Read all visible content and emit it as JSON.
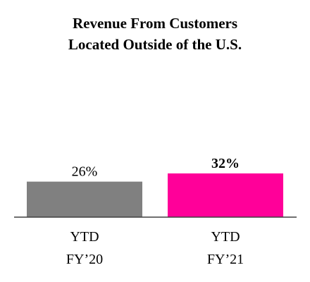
{
  "chart_data": {
    "type": "bar",
    "title_lines": [
      "Revenue From Customers",
      "Located Outside of the U.S."
    ],
    "categories": [
      [
        "YTD",
        "FY’20"
      ],
      [
        "YTD",
        "FY’21"
      ]
    ],
    "values": [
      26,
      32
    ],
    "data_labels": [
      "26%",
      "32%"
    ],
    "bar_colors": [
      "#808080",
      "#ff0099"
    ],
    "label_bold": [
      false,
      true
    ],
    "xlabel": "",
    "ylabel": "",
    "ylim": [
      0,
      100
    ],
    "grid": false,
    "legend": "none"
  }
}
